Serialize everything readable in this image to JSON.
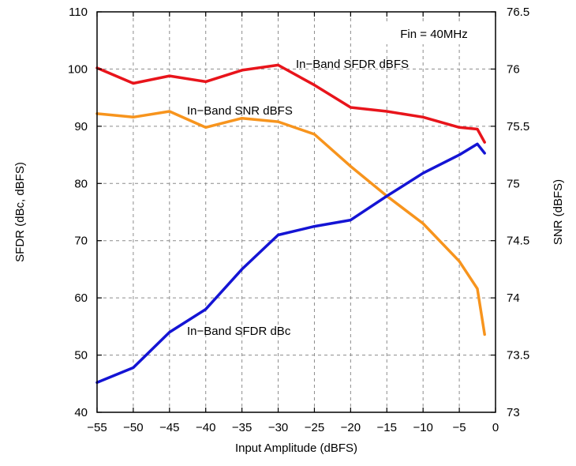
{
  "chart_data": {
    "type": "line",
    "xlabel": "Input Amplitude (dBFS)",
    "ylabel": "SFDR (dBc, dBFS)",
    "y2label": "SNR (dBFS)",
    "xlim": [
      -55,
      0
    ],
    "ylim": [
      40,
      110
    ],
    "y2lim": [
      73,
      76.5
    ],
    "xticks": [
      -55,
      -50,
      -45,
      -40,
      -35,
      -30,
      -25,
      -20,
      -15,
      -10,
      -5,
      0
    ],
    "yticks": [
      40,
      50,
      60,
      70,
      80,
      90,
      100,
      110
    ],
    "y2ticks": [
      73,
      73.5,
      74,
      74.5,
      75,
      75.5,
      76,
      76.5
    ],
    "y2tick_labels": [
      "73",
      "73.5",
      "74",
      "74.5",
      "75",
      "75.5",
      "76",
      "76.5"
    ],
    "grid": true,
    "annotation_box": "Fin = 40MHz",
    "series": [
      {
        "name": "In−Band SFDR dBFS",
        "axis": "left",
        "color": "#e8141b",
        "x": [
          -55,
          -50,
          -45,
          -40,
          -35,
          -30,
          -25,
          -20,
          -15,
          -10,
          -5,
          -2.5,
          -1.5
        ],
        "y": [
          100.2,
          97.5,
          98.8,
          97.8,
          99.8,
          100.7,
          97.2,
          93.3,
          92.6,
          91.6,
          89.8,
          89.5,
          87.2
        ]
      },
      {
        "name": "In−Band SNR dBFS",
        "axis": "right",
        "color": "#f7941d",
        "x": [
          -55,
          -50,
          -45,
          -40,
          -35,
          -30,
          -25,
          -20,
          -15,
          -10,
          -5,
          -2.5,
          -1.5
        ],
        "y": [
          75.61,
          75.58,
          75.63,
          75.49,
          75.57,
          75.54,
          75.43,
          75.15,
          74.89,
          74.65,
          74.32,
          74.08,
          73.68
        ]
      },
      {
        "name": "In−Band SFDR dBc",
        "axis": "left",
        "color": "#1414d4",
        "x": [
          -55,
          -50,
          -45,
          -40,
          -35,
          -30,
          -25,
          -20,
          -15,
          -10,
          -5,
          -2.5,
          -1.5
        ],
        "y": [
          45.2,
          47.8,
          54,
          58,
          65,
          71,
          72.5,
          73.6,
          77.8,
          81.8,
          85,
          86.9,
          85.3
        ]
      }
    ],
    "labels": [
      {
        "text": "In−Band SFDR dBFS",
        "series": 0
      },
      {
        "text": "In−Band SNR dBFS",
        "series": 1
      },
      {
        "text": "In−Band SFDR dBc",
        "series": 2
      }
    ]
  }
}
